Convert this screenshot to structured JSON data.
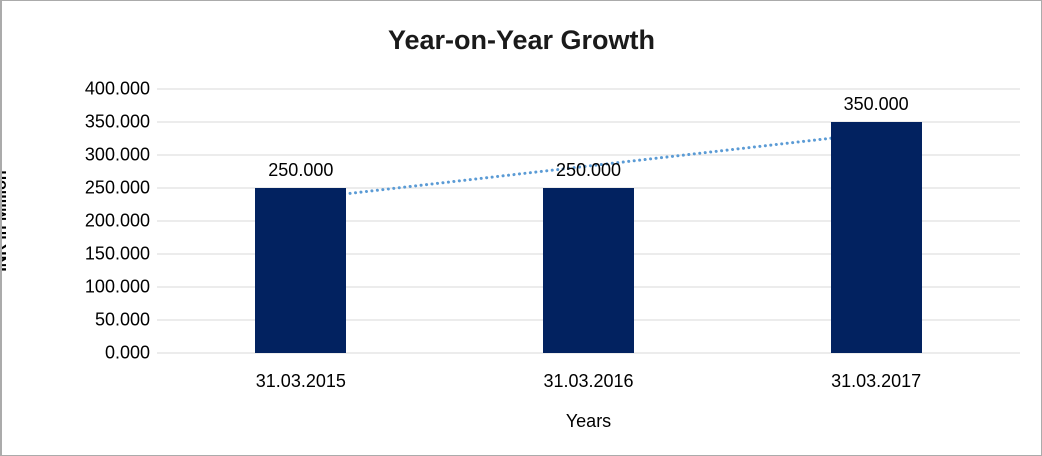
{
  "chart_data": {
    "type": "bar",
    "title": "Year-on-Year Growth",
    "xlabel": "Years",
    "ylabel": "INR in Million",
    "categories": [
      "31.03.2015",
      "31.03.2016",
      "31.03.2017"
    ],
    "values": [
      250.0,
      250.0,
      350.0
    ],
    "data_labels": [
      "250.000",
      "250.000",
      "350.000"
    ],
    "ylim": [
      0,
      400
    ],
    "ytick_step": 50,
    "ytick_labels": [
      "0.000",
      "50.000",
      "100.000",
      "150.000",
      "200.000",
      "250.000",
      "300.000",
      "350.000",
      "400.000"
    ],
    "grid": true,
    "legend_position": "none",
    "bar_color": "#022260",
    "gridline_color": "#d9d9d9",
    "frame_border_color": "#ababab",
    "title_color": "#1a1a1a",
    "text_color": "#000000",
    "trendline": {
      "type": "linear",
      "style": "dotted",
      "color": "#5b9bd5",
      "start_value": 233.3,
      "end_value": 333.3
    }
  }
}
